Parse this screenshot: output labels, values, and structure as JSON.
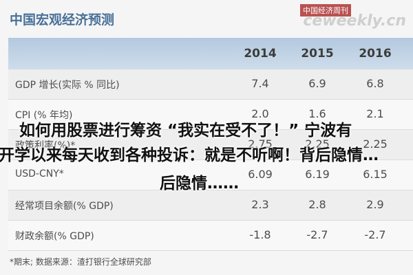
{
  "header": {
    "title": "中国宏观经济预测",
    "watermark": "中国经济周刊",
    "watermark_site": "ceweekly.cn"
  },
  "table": {
    "columns": [
      "2014",
      "2015",
      "2016"
    ],
    "rows": [
      [
        "GDP 增长(实际 % 同比)",
        "7.4",
        "6.9",
        "6.8"
      ],
      [
        "CPI (% 年均)",
        "2.0",
        "1.6",
        "2.1"
      ],
      [
        "政策利率(%)*",
        "2.75",
        "2.25",
        "2.25"
      ],
      [
        "USD-CNY*",
        "6.09",
        "6.19",
        "6.15"
      ],
      [
        "经常项目余额(% GDP)",
        "2.3",
        "2.8",
        "2.9"
      ],
      [
        "财政余额(% GDP)",
        "-1.8",
        "-2.7",
        "-2.7"
      ]
    ]
  },
  "footnote": "*期末;    数据来源：渣打银行全球研究部",
  "overlay": {
    "lines": [
      "如何用股票进行筹资 “我实在受不了！” 宁波有",
      "开学以来每天收到各种投诉：就是不听啊！背后隐情…",
      "后隐情……"
    ]
  }
}
